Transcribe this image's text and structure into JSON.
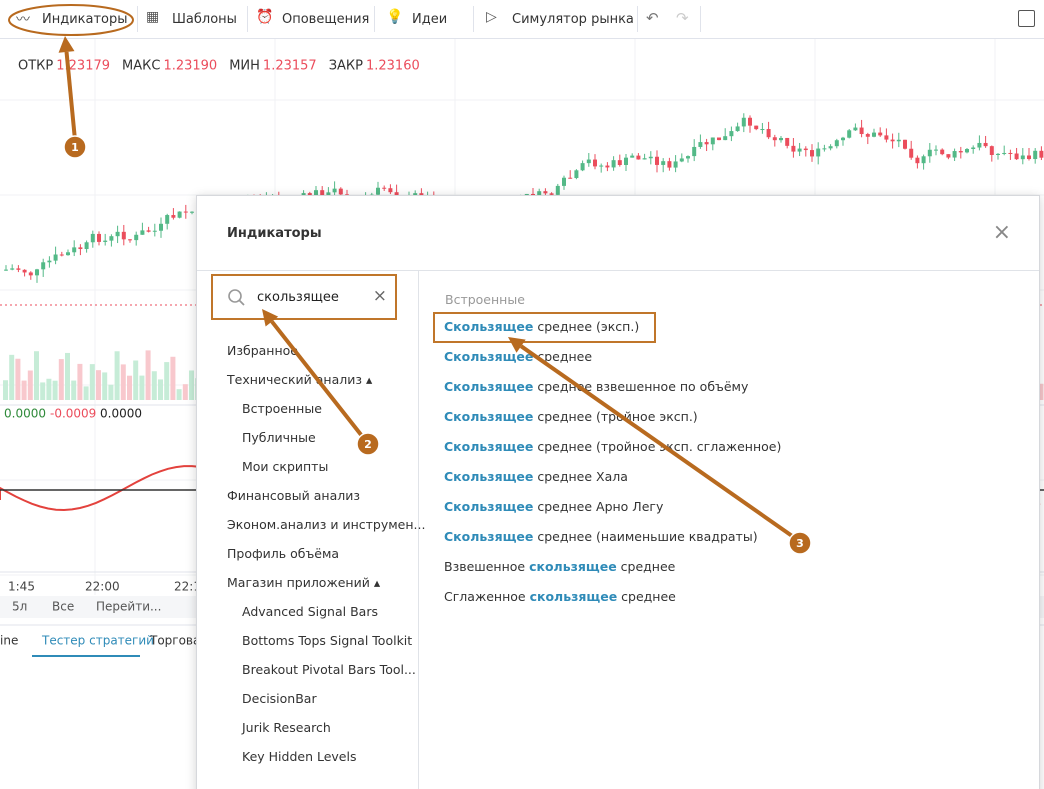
{
  "toolbar": {
    "items": [
      "Индикаторы",
      "Шаблоны",
      "Оповещения",
      "Идеи",
      "Симулятор рынка"
    ]
  },
  "ohlc": [
    {
      "label": "ОТКР",
      "value": "1.23179"
    },
    {
      "label": "МАКС",
      "value": "1.23190"
    },
    {
      "label": "МИН",
      "value": "1.23157"
    },
    {
      "label": "ЗАКР",
      "value": "1.23160"
    }
  ],
  "indicator_values": [
    "0.0000",
    "-0.0009",
    "0.0000"
  ],
  "time_labels": [
    "1:45",
    "22:00",
    "22:1"
  ],
  "range_bar": [
    "5л",
    "Все",
    "Перейти..."
  ],
  "tabs": [
    "ine",
    "Тестер стратегий",
    "Торговая"
  ],
  "dialog": {
    "title": "Индикаторы",
    "search": "скользящее",
    "sidebar": [
      {
        "label": "Избранное"
      },
      {
        "label": "Технический анализ",
        "children": [
          "Встроенные",
          "Публичные",
          "Мои скрипты"
        ]
      },
      {
        "label": "Финансовый анализ"
      },
      {
        "label": "Эконом.анализ и инструмен..."
      },
      {
        "label": "Профиль объёма"
      },
      {
        "label": "Магазин приложений",
        "children": [
          "Advanced Signal Bars",
          "Bottoms Tops Signal Toolkit",
          "Breakout Pivotal Bars Tool...",
          "DecisionBar",
          "Jurik Research",
          "Key Hidden Levels"
        ]
      }
    ],
    "section": "Встроенные",
    "results": [
      [
        {
          "text": "Скользящее",
          "match": true
        },
        {
          "text": " среднее (эксп.)"
        }
      ],
      [
        {
          "text": "Скользящее",
          "match": true
        },
        {
          "text": " среднее"
        }
      ],
      [
        {
          "text": "Скользящее",
          "match": true
        },
        {
          "text": " среднее взвешенное по объёму"
        }
      ],
      [
        {
          "text": "Скользящее",
          "match": true
        },
        {
          "text": " среднее (тройное эксп.)"
        }
      ],
      [
        {
          "text": "Скользящее",
          "match": true
        },
        {
          "text": " среднее (тройное эксп. сглаженное)"
        }
      ],
      [
        {
          "text": "Скользящее",
          "match": true
        },
        {
          "text": " среднее Хала"
        }
      ],
      [
        {
          "text": "Скользящее",
          "match": true
        },
        {
          "text": " среднее Арно Легу"
        }
      ],
      [
        {
          "text": "Скользящее",
          "match": true
        },
        {
          "text": " среднее (наименьшие квадраты)"
        }
      ],
      [
        {
          "text": "Взвешенное "
        },
        {
          "text": "скользящее",
          "match": true
        },
        {
          "text": " среднее"
        }
      ],
      [
        {
          "text": "Сглаженное "
        },
        {
          "text": "скользящее",
          "match": true
        },
        {
          "text": " среднее"
        }
      ]
    ]
  },
  "annotations": [
    "1",
    "2",
    "3"
  ]
}
